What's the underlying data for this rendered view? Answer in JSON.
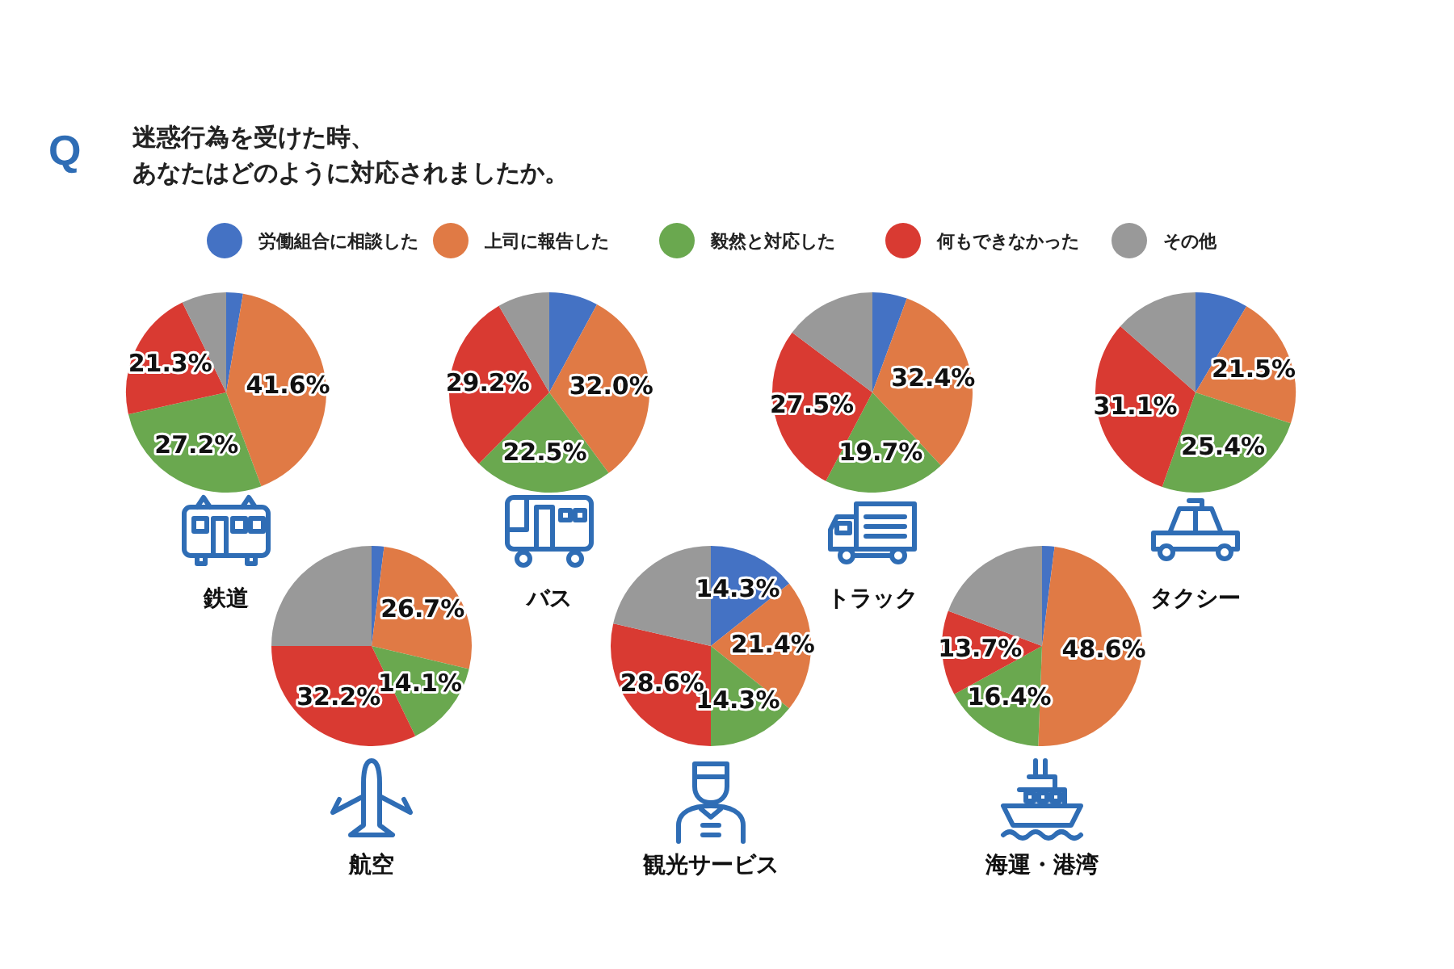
{
  "chart_data": [
    {
      "type": "other",
      "title": "迷惑行為を受けた時、",
      "subtitle": "あなたはどのように対応されましたか。",
      "annotations": [
        "Q"
      ]
    },
    {
      "type": "pie",
      "title": "鉄道",
      "legend": "top",
      "categories": [
        "労働組合に相談した",
        "上司に報告した",
        "毅然と対応した",
        "何もできなかった",
        "その他"
      ],
      "colors": [
        "#4472c4",
        "#e07a45",
        "#6aa84f",
        "#d93a32",
        "#999999"
      ],
      "values": [
        2.7,
        41.6,
        27.2,
        21.3,
        7.2
      ],
      "value_labels": [
        null,
        "41.6%",
        "27.2%",
        "21.3%",
        null
      ]
    },
    {
      "type": "pie",
      "title": "バス",
      "categories": [
        null,
        null,
        null,
        null,
        null
      ],
      "colors": [
        "#4472c4",
        "#e07a45",
        "#6aa84f",
        "#d93a32",
        "#999999"
      ],
      "values": [
        7.9,
        32.0,
        22.5,
        29.2,
        8.4
      ],
      "value_labels": [
        null,
        "32.0%",
        "22.5%",
        "29.2%",
        null
      ]
    },
    {
      "type": "pie",
      "title": "トラック",
      "categories": [
        null,
        null,
        null,
        null,
        null
      ],
      "colors": [
        "#4472c4",
        "#e07a45",
        "#6aa84f",
        "#d93a32",
        "#999999"
      ],
      "values": [
        5.6,
        32.4,
        19.7,
        27.5,
        14.8
      ],
      "value_labels": [
        null,
        "32.4%",
        "19.7%",
        "27.5%",
        null
      ]
    },
    {
      "type": "pie",
      "title": "タクシー",
      "categories": [
        null,
        null,
        null,
        null,
        null
      ],
      "colors": [
        "#4472c4",
        "#e07a45",
        "#6aa84f",
        "#d93a32",
        "#999999"
      ],
      "values": [
        8.5,
        21.5,
        25.4,
        31.1,
        13.5
      ],
      "value_labels": [
        null,
        "21.5%",
        "25.4%",
        "31.1%",
        null
      ]
    },
    {
      "type": "pie",
      "title": "航空",
      "categories": [
        null,
        null,
        null,
        null,
        null
      ],
      "colors": [
        "#4472c4",
        "#e07a45",
        "#6aa84f",
        "#d93a32",
        "#999999"
      ],
      "values": [
        2.0,
        26.7,
        14.1,
        32.2,
        25.0
      ],
      "value_labels": [
        null,
        "26.7%",
        "14.1%",
        "32.2%",
        null
      ]
    },
    {
      "type": "pie",
      "title": "観光サービス",
      "categories": [
        null,
        null,
        null,
        null,
        null
      ],
      "colors": [
        "#4472c4",
        "#e07a45",
        "#6aa84f",
        "#d93a32",
        "#999999"
      ],
      "values": [
        14.3,
        21.4,
        14.3,
        28.6,
        21.4
      ],
      "value_labels": [
        "14.3%",
        "21.4%",
        "14.3%",
        "28.6%",
        null
      ]
    },
    {
      "type": "pie",
      "title": "海運・港湾",
      "categories": [
        null,
        null,
        null,
        null,
        null
      ],
      "colors": [
        "#4472c4",
        "#e07a45",
        "#6aa84f",
        "#d93a32",
        "#999999"
      ],
      "values": [
        2.0,
        48.6,
        16.4,
        13.7,
        19.3
      ],
      "value_labels": [
        null,
        "48.6%",
        "16.4%",
        "13.7%",
        null
      ]
    }
  ]
}
